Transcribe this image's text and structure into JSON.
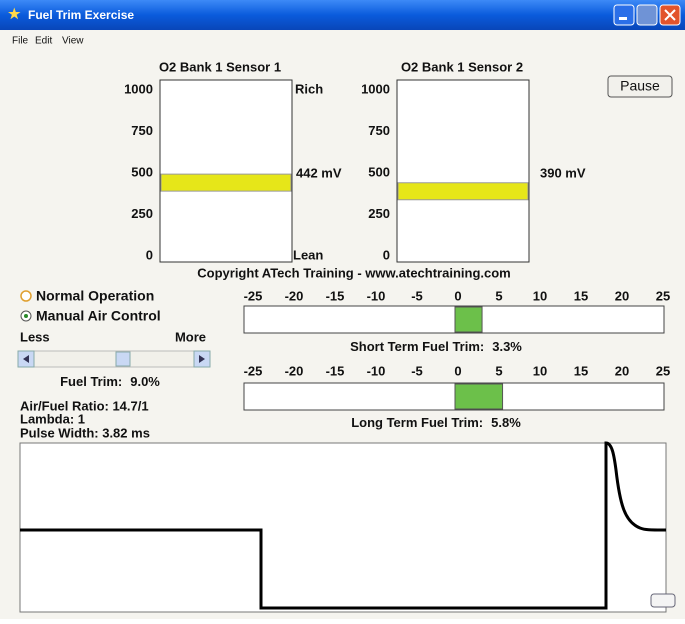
{
  "window": {
    "title": "Fuel Trim Exercise"
  },
  "menu": [
    "File",
    "Edit",
    "View"
  ],
  "sensors": [
    {
      "title": "O2 Bank 1 Sensor 1",
      "ticks": [
        0,
        250,
        500,
        750,
        1000
      ],
      "range": [
        0,
        1000
      ],
      "top_label": "Rich",
      "bottom_label": "Lean",
      "value": 442,
      "value_label": "442 mV",
      "color": "#e6e619"
    },
    {
      "title": "O2 Bank 1 Sensor 2",
      "ticks": [
        0,
        250,
        500,
        750,
        1000
      ],
      "range": [
        0,
        1000
      ],
      "value": 390,
      "value_label": "390 mV",
      "color": "#e6e619"
    }
  ],
  "pause_button": "Pause",
  "copyright": "Copyright ATech Training - www.atechtraining.com",
  "modes": [
    "Normal Operation",
    "Manual Air Control"
  ],
  "slider": {
    "less": "Less",
    "more": "More"
  },
  "fuel_trim": {
    "label": "Fuel Trim:",
    "value_label": "9.0%"
  },
  "readouts": [
    "Air/Fuel Ratio: 14.7/1",
    "Lambda: 1",
    "Pulse Width: 3.82 ms"
  ],
  "trims": [
    {
      "label": "Short Term Fuel Trim:",
      "value": 3.3,
      "value_label": "3.3%",
      "range": [
        -25,
        25
      ],
      "ticks": [
        -25,
        -20,
        -15,
        -10,
        -5,
        0,
        5,
        10,
        15,
        20,
        25
      ],
      "color": "#6cc04a"
    },
    {
      "label": "Long Term Fuel Trim:",
      "value": 5.8,
      "value_label": "5.8%",
      "range": [
        -25,
        25
      ],
      "ticks": [
        -25,
        -20,
        -15,
        -10,
        -5,
        0,
        5,
        10,
        15,
        20,
        25
      ],
      "color": "#6cc04a"
    }
  ]
}
